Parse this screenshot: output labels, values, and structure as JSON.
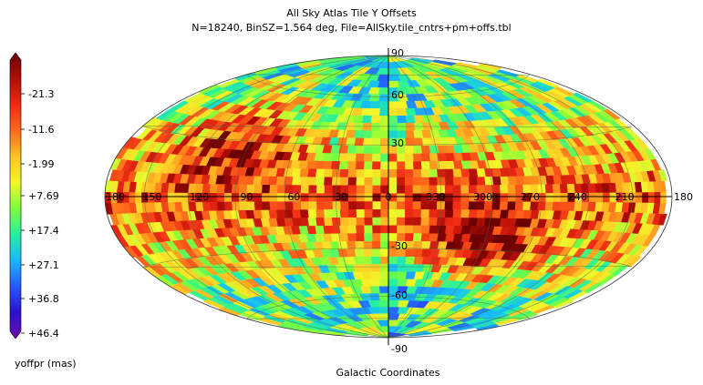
{
  "chart_data": {
    "type": "heatmap",
    "projection": "hammer-aitoff all-sky",
    "title": "All Sky Atlas Tile Y Offsets",
    "subtitle": "N=18240, BinSZ=1.564 deg, File=AllSky.tile_cntrs+pm+offs.tbl",
    "xlabel": "Galactic Coordinates",
    "colorbar": {
      "label": "yoffpr (mas)",
      "tick_labels": [
        "-21.3",
        "-11.6",
        "-1.99",
        "+7.69",
        "+17.4",
        "+27.1",
        "+36.8",
        "+46.4"
      ],
      "range": [
        -31.0,
        46.4
      ],
      "colormap": [
        "#6a0000",
        "#b10d06",
        "#ee2b14",
        "#ff6a1a",
        "#ffc425",
        "#f3f72a",
        "#7dff3a",
        "#25f0a0",
        "#18b9ff",
        "#2657ff",
        "#2b10d2",
        "#6e0ea6"
      ]
    },
    "longitude_labels": [
      "180",
      "150",
      "120",
      "90",
      "60",
      "30",
      "0",
      "330",
      "300",
      "270",
      "240",
      "210",
      "180"
    ],
    "latitude_labels": [
      "90",
      "60",
      "30",
      "-30",
      "-60",
      "-90"
    ],
    "grid": true,
    "pattern_note": "red/dark-red (negative offsets) dominate the Galactic plane and two bulges near l~90,b~+30 and l~300,b~-30; green/blue/purple (positive offsets) at high southern and northern latitudes"
  }
}
